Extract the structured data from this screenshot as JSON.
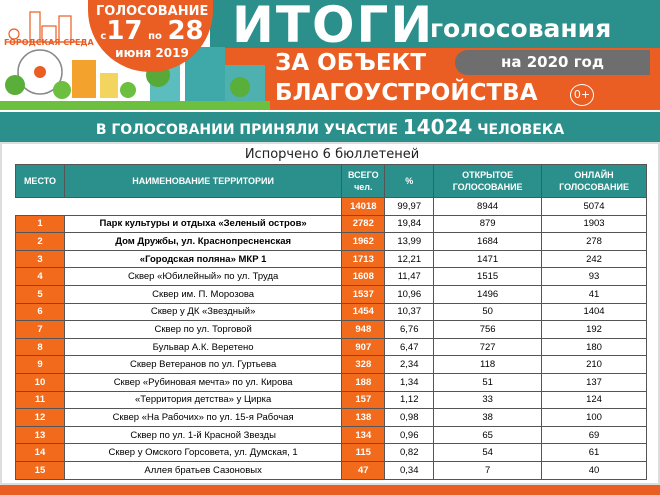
{
  "banner": {
    "logo_text": "ГОРОДСКАЯ СРЕДА",
    "vote_label": "ГОЛОСОВАНИЕ",
    "from_word": "с",
    "from_day": "17",
    "to_word": "по",
    "to_day": "28",
    "month_year": "июня 2019",
    "title_main": "ИТОГИ",
    "title_sub": "голосования",
    "line2": "ЗА ОБЪЕКТ",
    "year_pill": "на 2020 год",
    "line3": "БЛАГОУСТРОЙСТВА",
    "age_rating": "0+"
  },
  "summary": {
    "prefix": "В ГОЛОСОВАНИИ ПРИНЯЛИ УЧАСТИЕ",
    "count": "14024",
    "suffix": "ЧЕЛОВЕКА"
  },
  "spoiled": "Испорчено 6 бюллетеней",
  "columns": [
    "МЕСТО",
    "НАИМЕНОВАНИЕ ТЕРРИТОРИИ",
    "ВСЕГО чел.",
    "%",
    "ОТКРЫТОЕ ГОЛОСОВАНИЕ",
    "ОНЛАЙН ГОЛОСОВАНИЕ"
  ],
  "totals": {
    "total": "14018",
    "percent": "99,97",
    "open": "8944",
    "online": "5074"
  },
  "rows": [
    [
      "1",
      "Парк культуры и отдыха «Зеленый остров»",
      "2782",
      "19,84",
      "879",
      "1903"
    ],
    [
      "2",
      "Дом Дружбы, ул. Краснопресненская",
      "1962",
      "13,99",
      "1684",
      "278"
    ],
    [
      "3",
      "«Городская поляна» МКР 1",
      "1713",
      "12,21",
      "1471",
      "242"
    ],
    [
      "4",
      "Сквер «Юбилейный» по ул. Труда",
      "1608",
      "11,47",
      "1515",
      "93"
    ],
    [
      "5",
      "Сквер им. П. Морозова",
      "1537",
      "10,96",
      "1496",
      "41"
    ],
    [
      "6",
      "Сквер у ДК «Звездный»",
      "1454",
      "10,37",
      "50",
      "1404"
    ],
    [
      "7",
      "Сквер по ул. Торговой",
      "948",
      "6,76",
      "756",
      "192"
    ],
    [
      "8",
      "Бульвар А.К. Веретено",
      "907",
      "6,47",
      "727",
      "180"
    ],
    [
      "9",
      "Сквер Ветеранов по ул. Гуртьева",
      "328",
      "2,34",
      "118",
      "210"
    ],
    [
      "10",
      "Сквер «Рубиновая мечта» по ул. Кирова",
      "188",
      "1,34",
      "51",
      "137"
    ],
    [
      "11",
      "«Территория детства» у Цирка",
      "157",
      "1,12",
      "33",
      "124"
    ],
    [
      "12",
      "Сквер «На Рабочих» по ул. 15-я Рабочая",
      "138",
      "0,98",
      "38",
      "100"
    ],
    [
      "13",
      "Сквер по ул. 1-й Красной Звезды",
      "134",
      "0,96",
      "65",
      "69"
    ],
    [
      "14",
      "Сквер у Омского Горсовета, ул. Думская, 1",
      "115",
      "0,82",
      "54",
      "61"
    ],
    [
      "15",
      "Аллея братьев Сазоновых",
      "47",
      "0,34",
      "7",
      "40"
    ]
  ],
  "colors": {
    "teal": "#2b8f8c",
    "orange": "#ea5e23",
    "gray": "#6e6e6e"
  }
}
